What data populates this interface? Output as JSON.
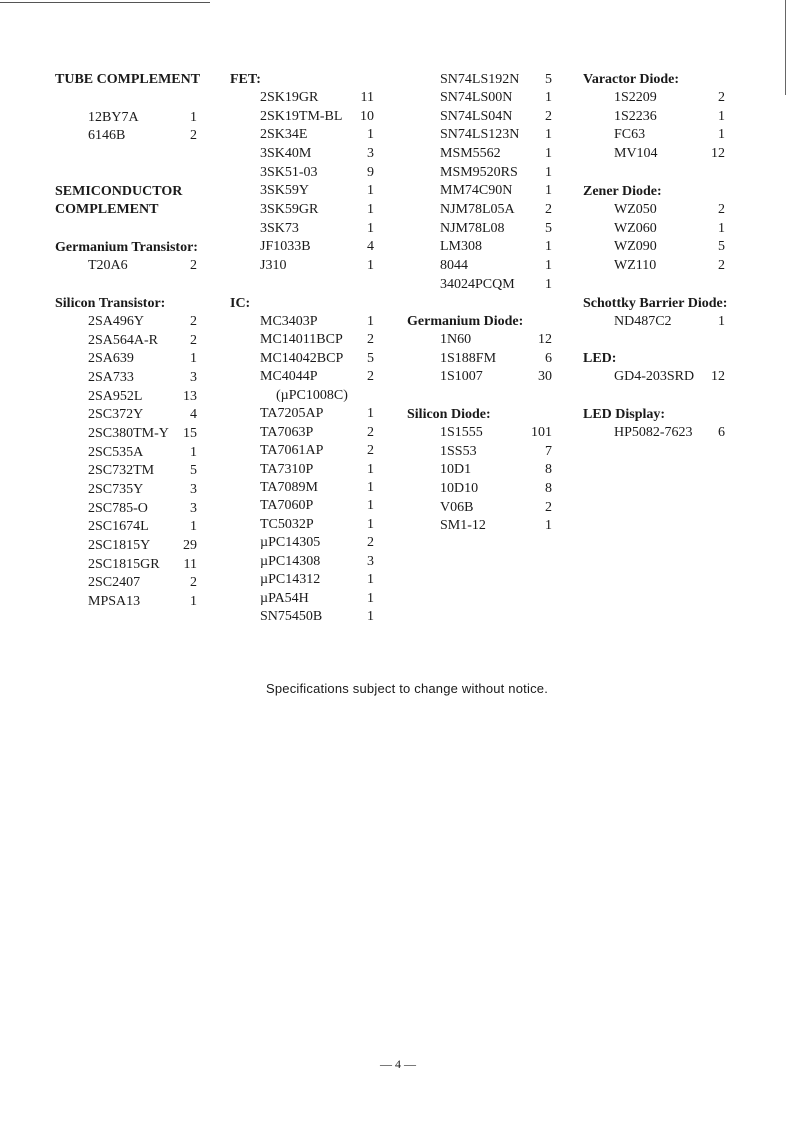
{
  "sections": [
    {
      "id": "tube",
      "heading": [
        "TUBE COMPLEMENT"
      ],
      "items": [
        [
          "12BY7A",
          "1"
        ],
        [
          "6146B",
          "2"
        ]
      ]
    },
    {
      "id": "semi",
      "heading": [
        "SEMICONDUCTOR",
        "COMPLEMENT"
      ],
      "items": []
    },
    {
      "id": "ge_tr",
      "heading": [
        "Germanium Transistor:"
      ],
      "items": [
        [
          "T20A6",
          "2"
        ]
      ]
    },
    {
      "id": "si_tr",
      "heading": [
        "Silicon Transistor:"
      ],
      "items": [
        [
          "2SA496Y",
          "2"
        ],
        [
          "2SA564A-R",
          "2"
        ],
        [
          "2SA639",
          "1"
        ],
        [
          "2SA733",
          "3"
        ],
        [
          "2SA952L",
          "13"
        ],
        [
          "2SC372Y",
          "4"
        ],
        [
          "2SC380TM-Y",
          "15"
        ],
        [
          "2SC535A",
          "1"
        ],
        [
          "2SC732TM",
          "5"
        ],
        [
          "2SC735Y",
          "3"
        ],
        [
          "2SC785-O",
          "3"
        ],
        [
          "2SC1674L",
          "1"
        ],
        [
          "2SC1815Y",
          "29"
        ],
        [
          "2SC1815GR",
          "11"
        ],
        [
          "2SC2407",
          "2"
        ],
        [
          "MPSA13",
          "1"
        ]
      ]
    },
    {
      "id": "fet",
      "heading": [
        "FET:"
      ],
      "items": [
        [
          "2SK19GR",
          "11"
        ],
        [
          "2SK19TM-BL",
          "10"
        ],
        [
          "2SK34E",
          "1"
        ],
        [
          "3SK40M",
          "3"
        ],
        [
          "3SK51-03",
          "9"
        ],
        [
          "3SK59Y",
          "1"
        ],
        [
          "3SK59GR",
          "1"
        ],
        [
          "3SK73",
          "1"
        ],
        [
          "JF1033B",
          "4"
        ],
        [
          "J310",
          "1"
        ]
      ]
    },
    {
      "id": "ic",
      "heading": [
        "IC:"
      ],
      "items": [
        [
          "MC3403P",
          "1"
        ],
        [
          "MC14011BCP",
          "2"
        ],
        [
          "MC14042BCP",
          "5"
        ],
        [
          "MC4044P",
          "2"
        ],
        [
          "(µPC1008C)",
          ""
        ],
        [
          "TA7205AP",
          "1"
        ],
        [
          "TA7063P",
          "2"
        ],
        [
          "TA7061AP",
          "2"
        ],
        [
          "TA7310P",
          "1"
        ],
        [
          "TA7089M",
          "1"
        ],
        [
          "TA7060P",
          "1"
        ],
        [
          "TC5032P",
          "1"
        ],
        [
          "µPC14305",
          "2"
        ],
        [
          "µPC14308",
          "3"
        ],
        [
          "µPC14312",
          "1"
        ],
        [
          "µPA54H",
          "1"
        ],
        [
          "SN75450B",
          "1"
        ]
      ]
    },
    {
      "id": "ic2",
      "heading": [],
      "items": [
        [
          "SN74LS192N",
          "5"
        ],
        [
          "SN74LS00N",
          "1"
        ],
        [
          "SN74LS04N",
          "2"
        ],
        [
          "SN74LS123N",
          "1"
        ],
        [
          "MSM5562",
          "1"
        ],
        [
          "MSM9520RS",
          "1"
        ],
        [
          "MM74C90N",
          "1"
        ],
        [
          "NJM78L05A",
          "2"
        ],
        [
          "NJM78L08",
          "5"
        ],
        [
          "LM308",
          "1"
        ],
        [
          "8044",
          "1"
        ],
        [
          "34024PCQM",
          "1"
        ]
      ]
    },
    {
      "id": "ge_di",
      "heading": [
        "Germanium Diode:"
      ],
      "items": [
        [
          "1N60",
          "12"
        ],
        [
          "1S188FM",
          "6"
        ],
        [
          "1S1007",
          "30"
        ]
      ]
    },
    {
      "id": "si_di",
      "heading": [
        "Silicon Diode:"
      ],
      "items": [
        [
          "1S1555",
          "101"
        ],
        [
          "1SS53",
          "7"
        ],
        [
          "10D1",
          "8"
        ],
        [
          "10D10",
          "8"
        ],
        [
          "V06B",
          "2"
        ],
        [
          "SM1-12",
          "1"
        ]
      ]
    },
    {
      "id": "varactor",
      "heading": [
        "Varactor Diode:"
      ],
      "items": [
        [
          "1S2209",
          "2"
        ],
        [
          "1S2236",
          "1"
        ],
        [
          "FC63",
          "1"
        ],
        [
          "MV104",
          "12"
        ]
      ]
    },
    {
      "id": "zener",
      "heading": [
        "Zener Diode:"
      ],
      "items": [
        [
          "WZ050",
          "2"
        ],
        [
          "WZ060",
          "1"
        ],
        [
          "WZ090",
          "5"
        ],
        [
          "WZ110",
          "2"
        ]
      ]
    },
    {
      "id": "schottky",
      "heading": [
        "Schottky Barrier Diode:"
      ],
      "items": [
        [
          "ND487C2",
          "1"
        ]
      ]
    },
    {
      "id": "led",
      "heading": [
        "LED:"
      ],
      "items": [
        [
          "GD4-203SRD",
          "12"
        ]
      ]
    },
    {
      "id": "led_disp",
      "heading": [
        "LED Display:"
      ],
      "items": [
        [
          "HP5082-7623",
          "6"
        ]
      ]
    }
  ],
  "footer": "Specifications subject to change without notice.",
  "page_number": "— 4 —"
}
